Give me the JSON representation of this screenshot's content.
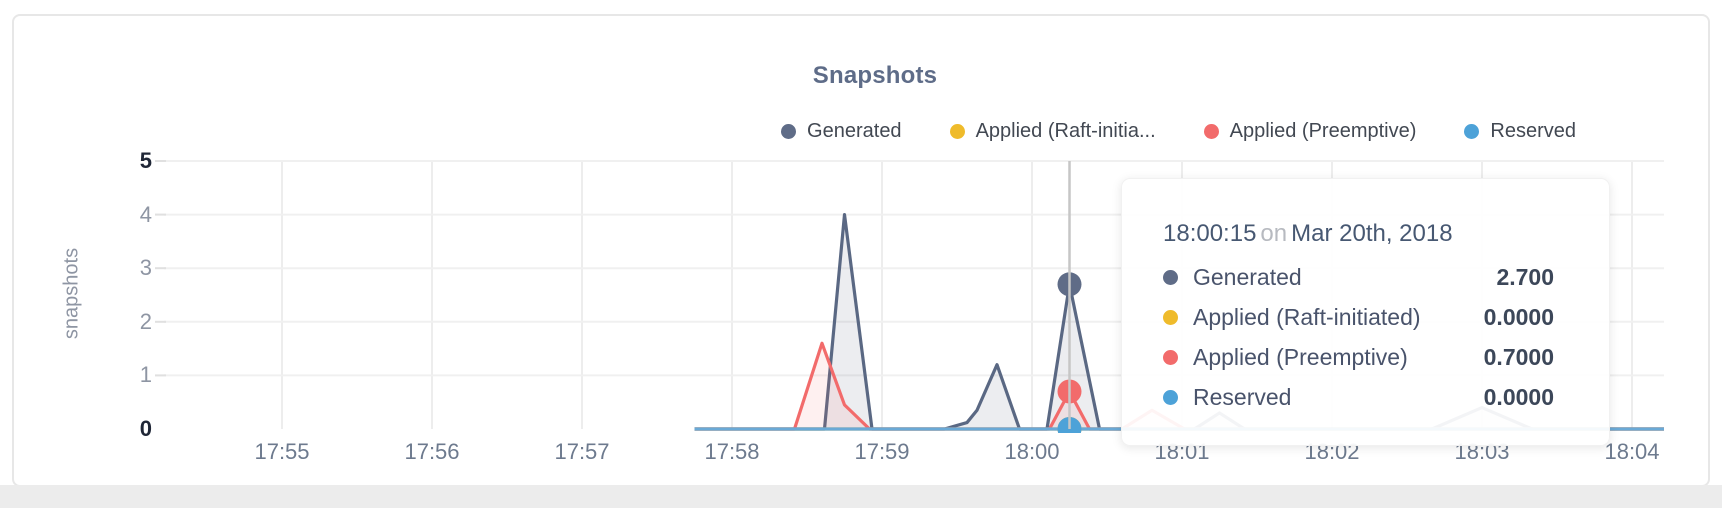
{
  "chart_data": {
    "type": "area",
    "title": "Snapshots",
    "ylabel": "snapshots",
    "ylim": [
      0,
      5
    ],
    "yticks": [
      0,
      1,
      2,
      3,
      4,
      5
    ],
    "xticks": [
      "17:55",
      "17:56",
      "17:57",
      "17:58",
      "17:59",
      "18:00",
      "18:01",
      "18:02",
      "18:03",
      "18:04"
    ],
    "x_origin": "17:55:00",
    "x_unit": "seconds_after_origin",
    "xlim_seconds": [
      -47,
      553
    ],
    "grid": "on",
    "legend_position": "top-right",
    "series": [
      {
        "name": "Generated",
        "color": "#5a6883",
        "fill": "rgba(95,108,135,0.12)",
        "points": [
          [
            165,
            0
          ],
          [
            217,
            0
          ],
          [
            225,
            4.0
          ],
          [
            236,
            0
          ],
          [
            265,
            0
          ],
          [
            274,
            0.12
          ],
          [
            278,
            0.35
          ],
          [
            286,
            1.2
          ],
          [
            295,
            0
          ],
          [
            306,
            0
          ],
          [
            315,
            2.7
          ],
          [
            327,
            0
          ],
          [
            365,
            0
          ],
          [
            375,
            0.3
          ],
          [
            385,
            0
          ],
          [
            460,
            0
          ],
          [
            480,
            0.4
          ],
          [
            500,
            0
          ],
          [
            553,
            0
          ]
        ]
      },
      {
        "name": "Applied (Raft-initiated)",
        "color": "#efbb2b",
        "fill": "rgba(239,187,43,0.10)",
        "points": [
          [
            165,
            0
          ],
          [
            553,
            0
          ]
        ]
      },
      {
        "name": "Applied (Preemptive)",
        "color": "#f26b6b",
        "fill": "rgba(242,107,107,0.10)",
        "points": [
          [
            165,
            0
          ],
          [
            205,
            0
          ],
          [
            216,
            1.6
          ],
          [
            225,
            0.45
          ],
          [
            235,
            0
          ],
          [
            307,
            0
          ],
          [
            315,
            0.7
          ],
          [
            323,
            0
          ],
          [
            336,
            0
          ],
          [
            348,
            0.35
          ],
          [
            361,
            0
          ],
          [
            553,
            0
          ]
        ]
      },
      {
        "name": "Reserved",
        "color": "#6aa9d6",
        "fill": "rgba(106,169,214,0.10)",
        "points": [
          [
            165,
            0
          ],
          [
            553,
            0
          ]
        ]
      }
    ],
    "hover": {
      "time": "18:00:15",
      "x_seconds": 315
    }
  },
  "legend": {
    "items": [
      {
        "label": "Generated",
        "color": "#5f6c87"
      },
      {
        "label": "Applied (Raft-initia...",
        "color": "#efbb2b"
      },
      {
        "label": "Applied (Preemptive)",
        "color": "#f26b6b"
      },
      {
        "label": "Reserved",
        "color": "#4da2d8"
      }
    ]
  },
  "tooltip": {
    "time": "18:00:15",
    "conj": "on",
    "date": "Mar 20th, 2018",
    "rows": [
      {
        "label": "Generated",
        "color": "#5f6c87",
        "value": "2.700"
      },
      {
        "label": "Applied (Raft-initiated)",
        "color": "#efbb2b",
        "value": "0.0000"
      },
      {
        "label": "Applied (Preemptive)",
        "color": "#f26b6b",
        "value": "0.7000"
      },
      {
        "label": "Reserved",
        "color": "#4da2d8",
        "value": "0.0000"
      }
    ]
  }
}
